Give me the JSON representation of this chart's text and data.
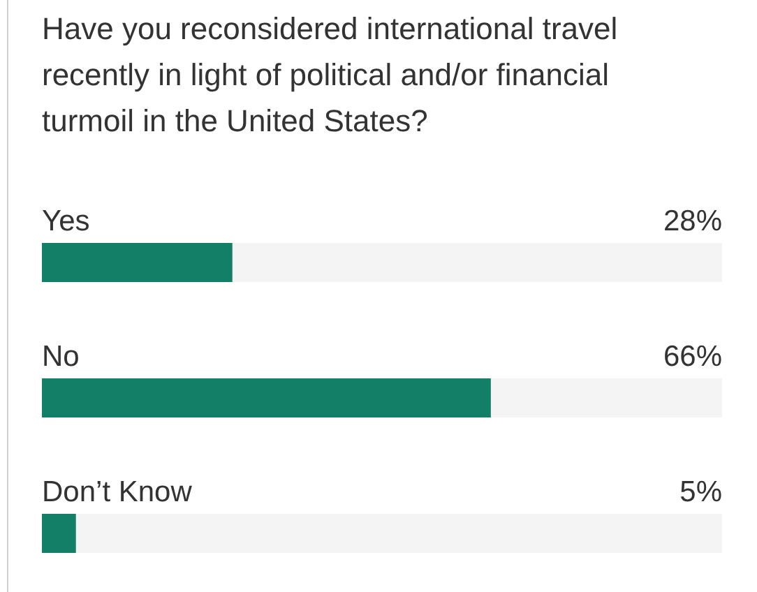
{
  "chart_data": {
    "type": "bar",
    "orientation": "horizontal",
    "title": "Have you reconsidered international travel recently in light of political and/or financial turmoil in the United States?",
    "categories": [
      "Yes",
      "No",
      "Don’t Know"
    ],
    "values": [
      28,
      66,
      5
    ],
    "value_labels": [
      "28%",
      "66%",
      "5%"
    ],
    "color": "#137f67",
    "xlim": [
      0,
      100
    ],
    "tick_labels": false
  }
}
